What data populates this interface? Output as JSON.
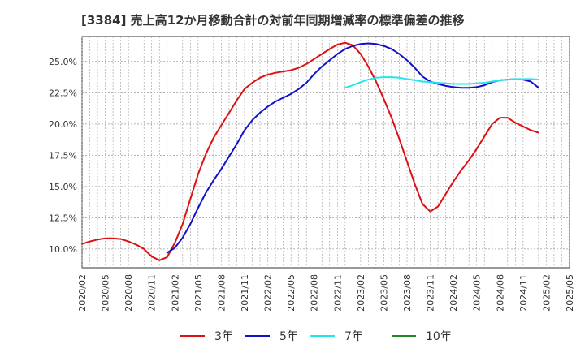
{
  "chart_data": {
    "type": "line",
    "title": "[3384]  売上高12か月移動合計の対前年同期増減率の標準偏差の推移",
    "xlabel": "",
    "ylabel": "",
    "x_ticks": [
      "2020/02",
      "2020/05",
      "2020/08",
      "2020/11",
      "2021/02",
      "2021/05",
      "2021/08",
      "2021/11",
      "2022/02",
      "2022/05",
      "2022/08",
      "2022/11",
      "2023/02",
      "2023/05",
      "2023/08",
      "2023/11",
      "2024/02",
      "2024/05",
      "2024/08",
      "2024/11",
      "2025/02",
      "2025/05"
    ],
    "y_ticks": [
      "10.0%",
      "12.5%",
      "15.0%",
      "17.5%",
      "20.0%",
      "22.5%",
      "25.0%"
    ],
    "y_tick_values": [
      10.0,
      12.5,
      15.0,
      17.5,
      20.0,
      22.5,
      25.0
    ],
    "xlim": [
      "2020/02",
      "2025/05"
    ],
    "ylim": [
      8.5,
      27.0
    ],
    "grid": true,
    "legend_position": "bottom",
    "series": [
      {
        "name": "3年",
        "color": "#dd1111",
        "points": [
          [
            "2020/02",
            10.4
          ],
          [
            "2020/03",
            10.6
          ],
          [
            "2020/04",
            10.75
          ],
          [
            "2020/05",
            10.85
          ],
          [
            "2020/06",
            10.85
          ],
          [
            "2020/07",
            10.8
          ],
          [
            "2020/08",
            10.6
          ],
          [
            "2020/09",
            10.35
          ],
          [
            "2020/10",
            10.0
          ],
          [
            "2020/11",
            9.4
          ],
          [
            "2020/12",
            9.1
          ],
          [
            "2021/01",
            9.35
          ],
          [
            "2021/02",
            10.5
          ],
          [
            "2021/03",
            12.0
          ],
          [
            "2021/04",
            14.0
          ],
          [
            "2021/05",
            16.0
          ],
          [
            "2021/06",
            17.6
          ],
          [
            "2021/07",
            18.9
          ],
          [
            "2021/08",
            19.9
          ],
          [
            "2021/09",
            20.9
          ],
          [
            "2021/10",
            21.9
          ],
          [
            "2021/11",
            22.8
          ],
          [
            "2021/12",
            23.3
          ],
          [
            "2022/01",
            23.7
          ],
          [
            "2022/02",
            23.95
          ],
          [
            "2022/03",
            24.1
          ],
          [
            "2022/04",
            24.2
          ],
          [
            "2022/05",
            24.3
          ],
          [
            "2022/06",
            24.5
          ],
          [
            "2022/07",
            24.8
          ],
          [
            "2022/08",
            25.2
          ],
          [
            "2022/09",
            25.6
          ],
          [
            "2022/10",
            26.0
          ],
          [
            "2022/11",
            26.35
          ],
          [
            "2022/12",
            26.5
          ],
          [
            "2023/01",
            26.3
          ],
          [
            "2023/02",
            25.6
          ],
          [
            "2023/03",
            24.6
          ],
          [
            "2023/04",
            23.4
          ],
          [
            "2023/05",
            22.0
          ],
          [
            "2023/06",
            20.5
          ],
          [
            "2023/07",
            18.8
          ],
          [
            "2023/08",
            17.0
          ],
          [
            "2023/09",
            15.2
          ],
          [
            "2023/10",
            13.6
          ],
          [
            "2023/11",
            13.0
          ],
          [
            "2023/12",
            13.4
          ],
          [
            "2024/01",
            14.4
          ],
          [
            "2024/02",
            15.4
          ],
          [
            "2024/03",
            16.3
          ],
          [
            "2024/04",
            17.1
          ],
          [
            "2024/05",
            18.0
          ],
          [
            "2024/06",
            19.0
          ],
          [
            "2024/07",
            20.0
          ],
          [
            "2024/08",
            20.5
          ],
          [
            "2024/09",
            20.5
          ],
          [
            "2024/10",
            20.1
          ],
          [
            "2024/11",
            19.8
          ],
          [
            "2024/12",
            19.5
          ],
          [
            "2025/01",
            19.3
          ]
        ]
      },
      {
        "name": "5年",
        "color": "#1111cc",
        "points": [
          [
            "2021/01",
            9.7
          ],
          [
            "2021/02",
            10.1
          ],
          [
            "2021/03",
            10.9
          ],
          [
            "2021/04",
            12.0
          ],
          [
            "2021/05",
            13.3
          ],
          [
            "2021/06",
            14.5
          ],
          [
            "2021/07",
            15.5
          ],
          [
            "2021/08",
            16.4
          ],
          [
            "2021/09",
            17.4
          ],
          [
            "2021/10",
            18.4
          ],
          [
            "2021/11",
            19.5
          ],
          [
            "2021/12",
            20.3
          ],
          [
            "2022/01",
            20.9
          ],
          [
            "2022/02",
            21.4
          ],
          [
            "2022/03",
            21.8
          ],
          [
            "2022/04",
            22.1
          ],
          [
            "2022/05",
            22.4
          ],
          [
            "2022/06",
            22.8
          ],
          [
            "2022/07",
            23.3
          ],
          [
            "2022/08",
            24.0
          ],
          [
            "2022/09",
            24.6
          ],
          [
            "2022/10",
            25.1
          ],
          [
            "2022/11",
            25.6
          ],
          [
            "2022/12",
            26.0
          ],
          [
            "2023/01",
            26.25
          ],
          [
            "2023/02",
            26.4
          ],
          [
            "2023/03",
            26.45
          ],
          [
            "2023/04",
            26.4
          ],
          [
            "2023/05",
            26.25
          ],
          [
            "2023/06",
            26.0
          ],
          [
            "2023/07",
            25.6
          ],
          [
            "2023/08",
            25.1
          ],
          [
            "2023/09",
            24.5
          ],
          [
            "2023/10",
            23.8
          ],
          [
            "2023/11",
            23.4
          ],
          [
            "2023/12",
            23.2
          ],
          [
            "2024/01",
            23.05
          ],
          [
            "2024/02",
            22.95
          ],
          [
            "2024/03",
            22.9
          ],
          [
            "2024/04",
            22.9
          ],
          [
            "2024/05",
            22.95
          ],
          [
            "2024/06",
            23.1
          ],
          [
            "2024/07",
            23.35
          ],
          [
            "2024/08",
            23.5
          ],
          [
            "2024/09",
            23.55
          ],
          [
            "2024/10",
            23.6
          ],
          [
            "2024/11",
            23.55
          ],
          [
            "2024/12",
            23.4
          ],
          [
            "2025/01",
            22.9
          ]
        ]
      },
      {
        "name": "7年",
        "color": "#22e6ee",
        "points": [
          [
            "2022/12",
            22.9
          ],
          [
            "2023/01",
            23.1
          ],
          [
            "2023/02",
            23.35
          ],
          [
            "2023/03",
            23.55
          ],
          [
            "2023/04",
            23.7
          ],
          [
            "2023/05",
            23.75
          ],
          [
            "2023/06",
            23.75
          ],
          [
            "2023/07",
            23.7
          ],
          [
            "2023/08",
            23.6
          ],
          [
            "2023/09",
            23.5
          ],
          [
            "2023/10",
            23.4
          ],
          [
            "2023/11",
            23.35
          ],
          [
            "2023/12",
            23.3
          ],
          [
            "2024/01",
            23.25
          ],
          [
            "2024/02",
            23.2
          ],
          [
            "2024/03",
            23.2
          ],
          [
            "2024/04",
            23.2
          ],
          [
            "2024/05",
            23.25
          ],
          [
            "2024/06",
            23.3
          ],
          [
            "2024/07",
            23.4
          ],
          [
            "2024/08",
            23.5
          ],
          [
            "2024/09",
            23.55
          ],
          [
            "2024/10",
            23.6
          ],
          [
            "2024/11",
            23.6
          ],
          [
            "2024/12",
            23.6
          ],
          [
            "2025/01",
            23.55
          ]
        ]
      },
      {
        "name": "10年",
        "color": "#228822",
        "points": []
      }
    ]
  }
}
